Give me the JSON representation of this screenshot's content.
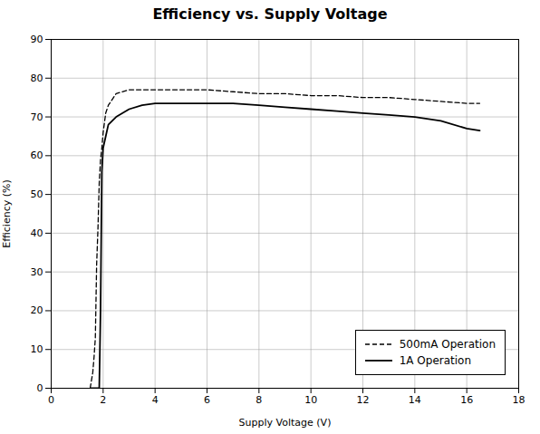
{
  "chart_data": {
    "type": "line",
    "title": "Efficiency vs. Supply Voltage",
    "x_label": "Supply Voltage (V)",
    "y_label": "Efficiency (%)",
    "xlim": [
      0,
      18
    ],
    "ylim": [
      0,
      90
    ],
    "xticks": [
      0,
      2,
      4,
      6,
      8,
      10,
      12,
      14,
      16,
      18
    ],
    "yticks": [
      0,
      10,
      20,
      30,
      40,
      50,
      60,
      70,
      80,
      90
    ],
    "grid": true,
    "legend": "lower right",
    "series": [
      {
        "name": "500mA Operation",
        "color": "#000000",
        "line_style": "dashed",
        "x": [
          1.5,
          1.6,
          1.65,
          1.7,
          1.75,
          1.8,
          1.85,
          1.9,
          1.95,
          2.0,
          2.1,
          2.2,
          2.5,
          3.0,
          3.5,
          4.0,
          5.0,
          6.0,
          7.0,
          8.0,
          9.0,
          10.0,
          11.0,
          12.0,
          13.0,
          14.0,
          15.0,
          16.0,
          16.5
        ],
        "values": [
          0,
          4,
          8,
          13,
          32,
          41,
          53,
          59,
          62,
          66,
          71,
          73,
          76,
          77,
          77,
          77,
          77,
          77,
          76.5,
          76,
          76,
          75.5,
          75.5,
          75,
          75,
          74.5,
          74,
          73.5,
          73.5
        ]
      },
      {
        "name": "1A Operation",
        "color": "#000000",
        "line_style": "solid",
        "x": [
          1.5,
          1.6,
          1.7,
          1.75,
          1.8,
          1.85,
          1.9,
          1.95,
          2.0,
          2.1,
          2.2,
          2.5,
          3.0,
          3.5,
          4.0,
          5.0,
          6.0,
          7.0,
          8.0,
          9.0,
          10.0,
          11.0,
          12.0,
          13.0,
          14.0,
          15.0,
          16.0,
          16.5
        ],
        "values": [
          0,
          0,
          0,
          0,
          0,
          0,
          20,
          56,
          62,
          65,
          68,
          70,
          72,
          73,
          73.5,
          73.5,
          73.5,
          73.5,
          73,
          72.5,
          72,
          71.5,
          71,
          70.5,
          70,
          69,
          67,
          66.5
        ]
      }
    ]
  }
}
